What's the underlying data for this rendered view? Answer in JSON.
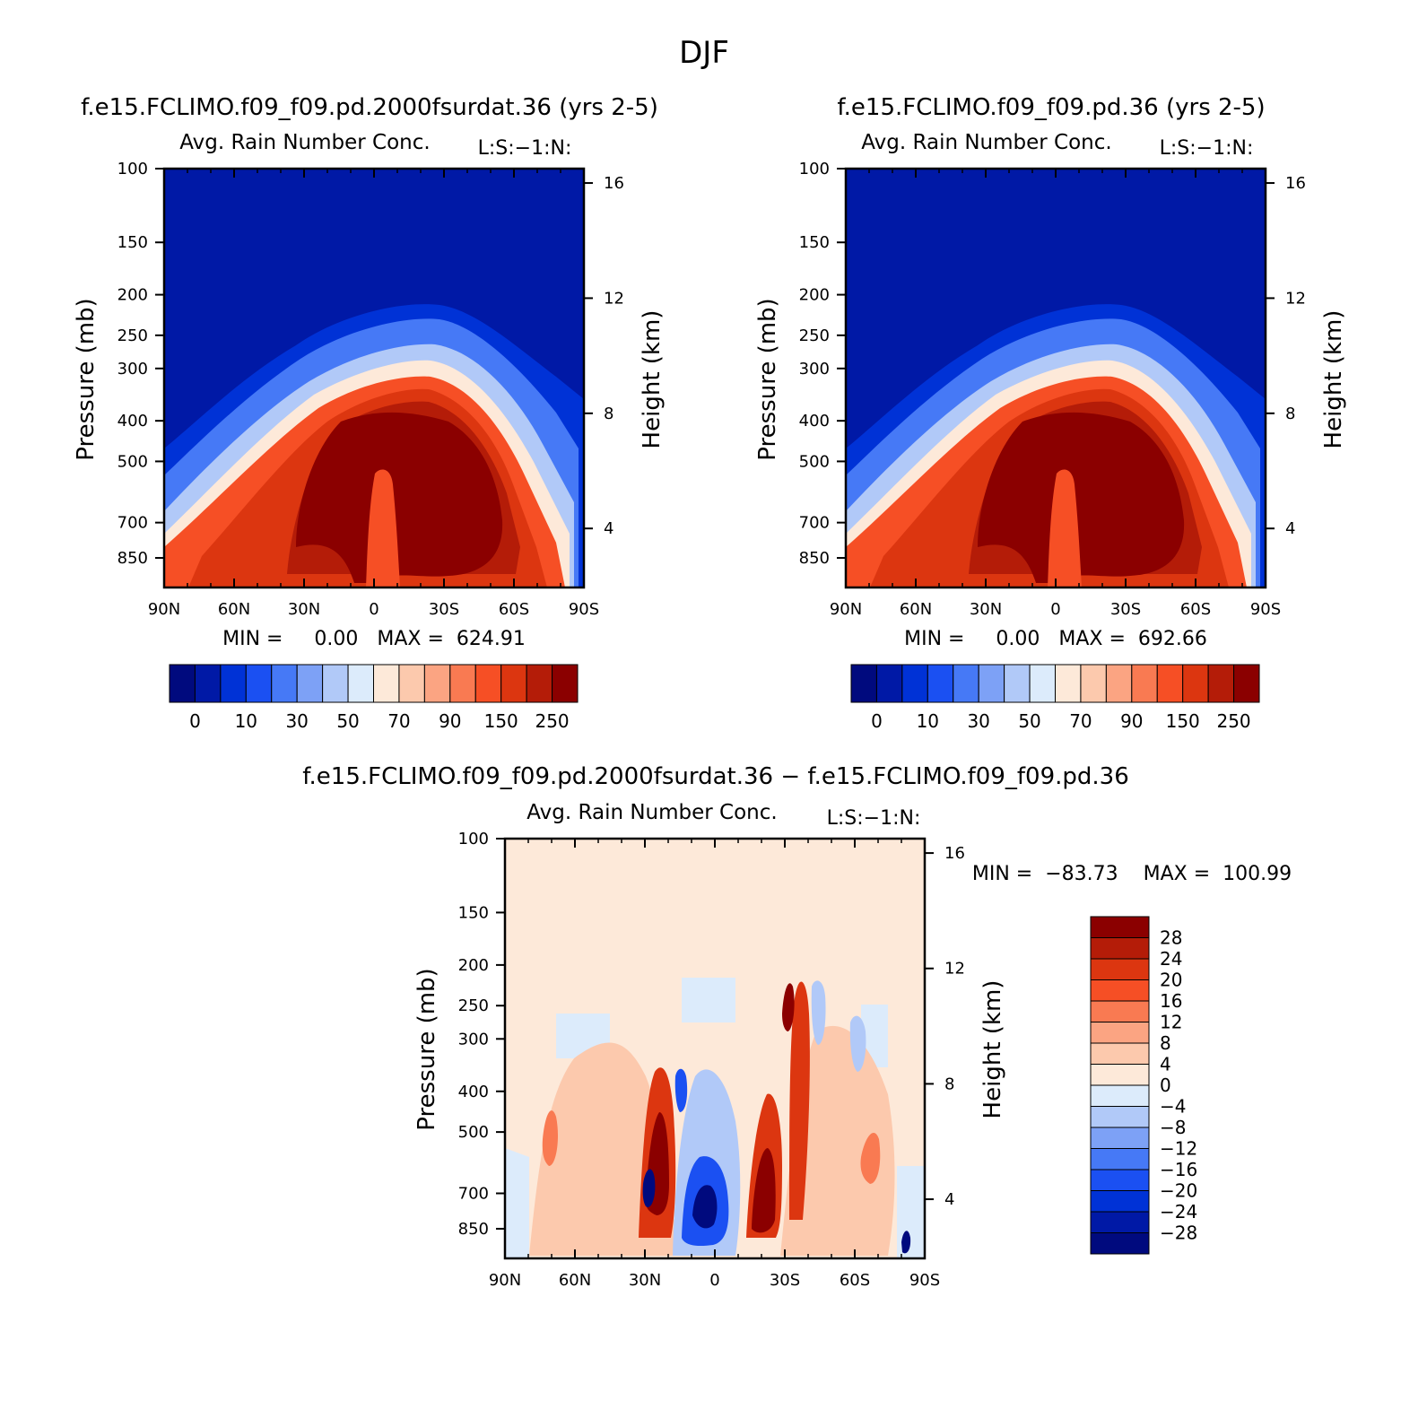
{
  "figure": {
    "title": "DJF"
  },
  "colors": {
    "top_bar": [
      "#000a7e",
      "#0019a6",
      "#0032d6",
      "#1b50f2",
      "#4679f6",
      "#7da1f6",
      "#b1c9f8",
      "#dcebfb",
      "#fde9d9",
      "#fcc9ad",
      "#fba482",
      "#f97a52",
      "#f64f25",
      "#dc3610",
      "#b41c08",
      "#8b0000"
    ],
    "diff_bar": [
      "#8b0000",
      "#b41c08",
      "#dc3610",
      "#f64f25",
      "#f97a52",
      "#fba482",
      "#fcc9ad",
      "#fde9d9",
      "#dcebfb",
      "#b1c9f8",
      "#7da1f6",
      "#4679f6",
      "#1b50f2",
      "#0032d6",
      "#0019a6",
      "#000a7e"
    ]
  },
  "chart_data": [
    {
      "type": "heatmap",
      "title": "f.e15.FCLIMO.f09_f09.pd.2000fsurdat.36 (yrs 2-5)",
      "subtitle": "Avg. Rain Number Conc.",
      "code_label": "L:S:−1:N:",
      "ylabel": "Pressure (mb)",
      "ylabel_right": "Height (km)",
      "x_ticks": [
        "90N",
        "60N",
        "30N",
        "0",
        "30S",
        "60S",
        "90S"
      ],
      "y_ticks": [
        "100",
        "150",
        "200",
        "250",
        "300",
        "400",
        "500",
        "700",
        "850"
      ],
      "y_ticks_right": [
        "16",
        "12",
        "8",
        "4"
      ],
      "stats": "MIN =     0.00   MAX =  624.91",
      "min": 0.0,
      "max": 624.91,
      "colorbar_labels": [
        "0",
        "10",
        "30",
        "50",
        "70",
        "90",
        "150",
        "250"
      ],
      "field": "rain-number-concentration"
    },
    {
      "type": "heatmap",
      "title": "f.e15.FCLIMO.f09_f09.pd.36 (yrs 2-5)",
      "subtitle": "Avg. Rain Number Conc.",
      "code_label": "L:S:−1:N:",
      "ylabel": "Pressure (mb)",
      "ylabel_right": "Height (km)",
      "x_ticks": [
        "90N",
        "60N",
        "30N",
        "0",
        "30S",
        "60S",
        "90S"
      ],
      "y_ticks": [
        "100",
        "150",
        "200",
        "250",
        "300",
        "400",
        "500",
        "700",
        "850"
      ],
      "y_ticks_right": [
        "16",
        "12",
        "8",
        "4"
      ],
      "stats": "MIN =     0.00   MAX =  692.66",
      "min": 0.0,
      "max": 692.66,
      "colorbar_labels": [
        "0",
        "10",
        "30",
        "50",
        "70",
        "90",
        "150",
        "250"
      ],
      "field": "rain-number-concentration"
    },
    {
      "type": "heatmap",
      "title": "f.e15.FCLIMO.f09_f09.pd.2000fsurdat.36 − f.e15.FCLIMO.f09_f09.pd.36",
      "subtitle": "Avg. Rain Number Conc.",
      "code_label": "L:S:−1:N:",
      "ylabel": "Pressure (mb)",
      "ylabel_right": "Height (km)",
      "x_ticks": [
        "90N",
        "60N",
        "30N",
        "0",
        "30S",
        "60S",
        "90S"
      ],
      "y_ticks": [
        "100",
        "150",
        "200",
        "250",
        "300",
        "400",
        "500",
        "700",
        "850"
      ],
      "y_ticks_right": [
        "16",
        "12",
        "8",
        "4"
      ],
      "stats": "MIN =  −83.73    MAX =  100.99",
      "min": -83.73,
      "max": 100.99,
      "colorbar_labels": [
        "28",
        "24",
        "20",
        "16",
        "12",
        "8",
        "4",
        "0",
        "−4",
        "−8",
        "−12",
        "−16",
        "−20",
        "−24",
        "−28"
      ],
      "field": "difference"
    }
  ]
}
